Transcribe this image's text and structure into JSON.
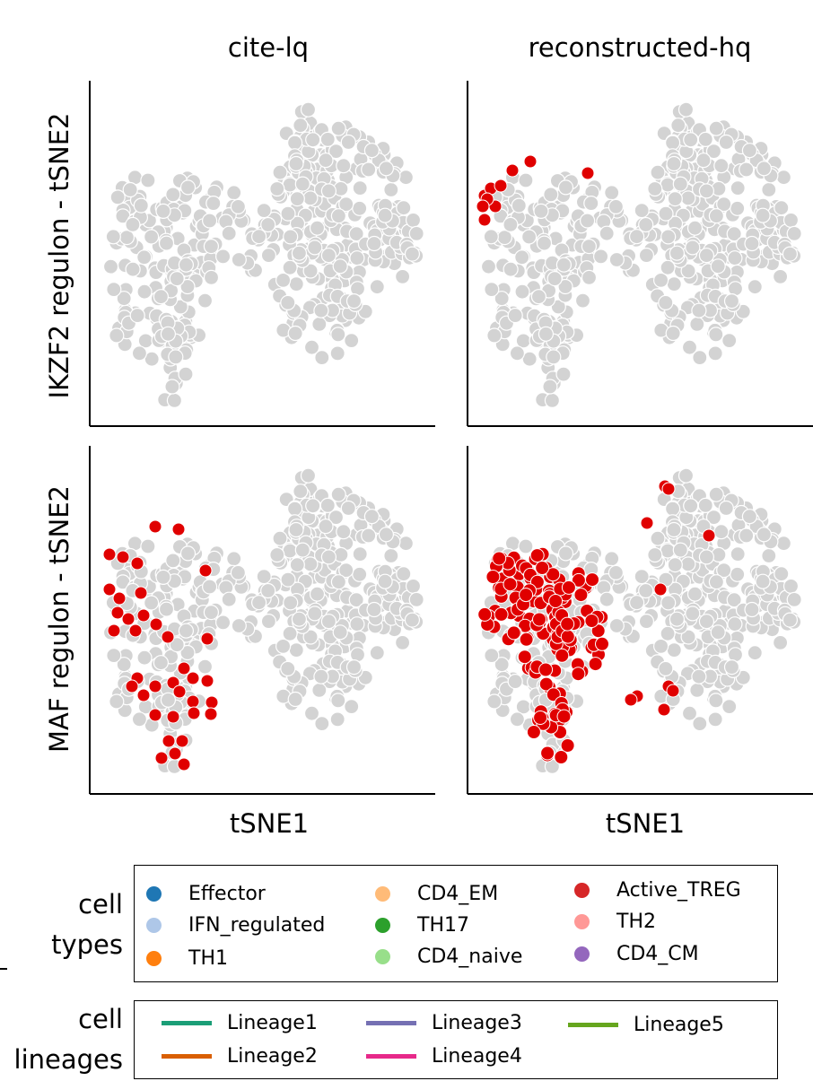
{
  "chart_data": [
    {
      "type": "scatter",
      "panel": "IKZF2 regulon / cite-lq",
      "title": "cite-lq",
      "xlabel": "",
      "ylabel": "IKZF2 regulon - tSNE2",
      "background_color": "#d3d3d3",
      "highlight_color": "#e00000",
      "highlighted_points": []
    },
    {
      "type": "scatter",
      "panel": "IKZF2 regulon / reconstructed-hq",
      "title": "reconstructed-hq",
      "xlabel": "",
      "ylabel": "",
      "background_color": "#d3d3d3",
      "highlight_color": "#e00000",
      "highlighted_points": [
        [
          540,
          218
        ],
        [
          547,
          210
        ],
        [
          552,
          230
        ],
        [
          543,
          222
        ],
        [
          558,
          207
        ],
        [
          571,
          190
        ],
        [
          591,
          180
        ],
        [
          655,
          193
        ],
        [
          540,
          245
        ],
        [
          538,
          230
        ]
      ]
    },
    {
      "type": "scatter",
      "panel": "MAF regulon / cite-lq",
      "title": "",
      "xlabel": "tSNE1",
      "ylabel": "MAF regulon - tSNE2",
      "background_color": "#d3d3d3",
      "highlight_color": "#e00000",
      "highlighted_points": [
        [
          173,
          587
        ],
        [
          199,
          590
        ],
        [
          122,
          618
        ],
        [
          137,
          621
        ],
        [
          153,
          628
        ],
        [
          229,
          636
        ],
        [
          122,
          657
        ],
        [
          133,
          667
        ],
        [
          157,
          661
        ],
        [
          131,
          683
        ],
        [
          143,
          690
        ],
        [
          160,
          686
        ],
        [
          174,
          696
        ],
        [
          127,
          703
        ],
        [
          151,
          703
        ],
        [
          187,
          710
        ],
        [
          231,
          712
        ],
        [
          205,
          745
        ],
        [
          153,
          756
        ],
        [
          173,
          765
        ],
        [
          193,
          761
        ],
        [
          215,
          756
        ],
        [
          231,
          759
        ],
        [
          147,
          765
        ],
        [
          160,
          775
        ],
        [
          200,
          771
        ],
        [
          215,
          782
        ],
        [
          236,
          783
        ],
        [
          173,
          797
        ],
        [
          193,
          799
        ],
        [
          216,
          795
        ],
        [
          235,
          796
        ],
        [
          188,
          826
        ],
        [
          203,
          826
        ],
        [
          180,
          845
        ],
        [
          195,
          840
        ],
        [
          205,
          852
        ]
      ]
    },
    {
      "type": "scatter",
      "panel": "MAF regulon / reconstructed-hq",
      "title": "",
      "xlabel": "tSNE1",
      "ylabel": "",
      "background_color": "#d3d3d3",
      "highlight_color": "#e00000",
      "highlighted_points": [
        [
          741,
          542
        ],
        [
          745,
          545
        ],
        [
          721,
          583
        ],
        [
          790,
          597
        ],
        [
          736,
          657
        ],
        [
          710,
          776
        ],
        [
          703,
          780
        ],
        [
          740,
          791
        ],
        [
          745,
          765
        ],
        [
          750,
          770
        ]
      ]
    }
  ],
  "legend_cell_types": {
    "title_line1": "cell",
    "title_line2": "types",
    "items": [
      {
        "label": "Effector",
        "color": "#1f77b4"
      },
      {
        "label": "IFN_regulated",
        "color": "#aec7e8"
      },
      {
        "label": "TH1",
        "color": "#ff7f0e"
      },
      {
        "label": "CD4_EM",
        "color": "#ffbb78"
      },
      {
        "label": "TH17",
        "color": "#2ca02c"
      },
      {
        "label": "CD4_naive",
        "color": "#98df8a"
      },
      {
        "label": "Active_TREG",
        "color": "#d62728"
      },
      {
        "label": "TH2",
        "color": "#ff9896"
      },
      {
        "label": "CD4_CM",
        "color": "#9467bd"
      }
    ]
  },
  "legend_cell_lineages": {
    "title_line1": "cell",
    "title_line2": "lineages",
    "items": [
      {
        "label": "Lineage1",
        "color": "#1b9e77"
      },
      {
        "label": "Lineage2",
        "color": "#d95f02"
      },
      {
        "label": "Lineage3",
        "color": "#7570b3"
      },
      {
        "label": "Lineage4",
        "color": "#e7298a"
      },
      {
        "label": "Lineage5",
        "color": "#66a61e"
      }
    ]
  }
}
